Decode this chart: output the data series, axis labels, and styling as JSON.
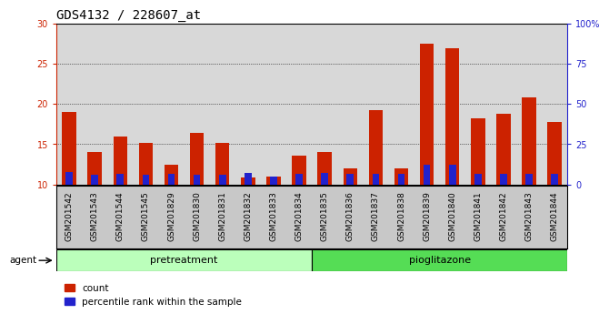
{
  "title": "GDS4132 / 228607_at",
  "categories": [
    "GSM201542",
    "GSM201543",
    "GSM201544",
    "GSM201545",
    "GSM201829",
    "GSM201830",
    "GSM201831",
    "GSM201832",
    "GSM201833",
    "GSM201834",
    "GSM201835",
    "GSM201836",
    "GSM201837",
    "GSM201838",
    "GSM201839",
    "GSM201840",
    "GSM201841",
    "GSM201842",
    "GSM201843",
    "GSM201844"
  ],
  "count_values": [
    19.0,
    14.0,
    16.0,
    15.2,
    12.5,
    16.4,
    15.1,
    10.9,
    11.0,
    13.6,
    14.0,
    12.0,
    19.2,
    12.0,
    27.5,
    26.9,
    18.2,
    18.8,
    20.8,
    17.8
  ],
  "percentile_values": [
    11.5,
    11.2,
    11.3,
    11.2,
    11.3,
    11.2,
    11.2,
    11.4,
    11.0,
    11.3,
    11.4,
    11.3,
    11.3,
    11.3,
    12.5,
    12.5,
    11.3,
    11.3,
    11.3,
    11.3
  ],
  "count_color": "#cc2200",
  "percentile_color": "#2222cc",
  "bar_width": 0.55,
  "ylim_left": [
    10,
    30
  ],
  "ylim_right": [
    0,
    100
  ],
  "yticks_left": [
    10,
    15,
    20,
    25,
    30
  ],
  "yticks_right": [
    0,
    25,
    50,
    75,
    100
  ],
  "ytick_labels_right": [
    "0",
    "25",
    "50",
    "75",
    "100%"
  ],
  "group1_label": "pretreatment",
  "group2_label": "pioglitazone",
  "group1_count": 10,
  "group2_count": 10,
  "group1_color": "#bbffbb",
  "group2_color": "#55dd55",
  "agent_label": "agent",
  "legend_count_label": "count",
  "legend_percentile_label": "percentile rank within the sample",
  "bar_area_bg": "#d8d8d8",
  "title_fontsize": 10,
  "tick_fontsize": 7,
  "xtick_fontsize": 6.5,
  "group_label_fontsize": 8
}
